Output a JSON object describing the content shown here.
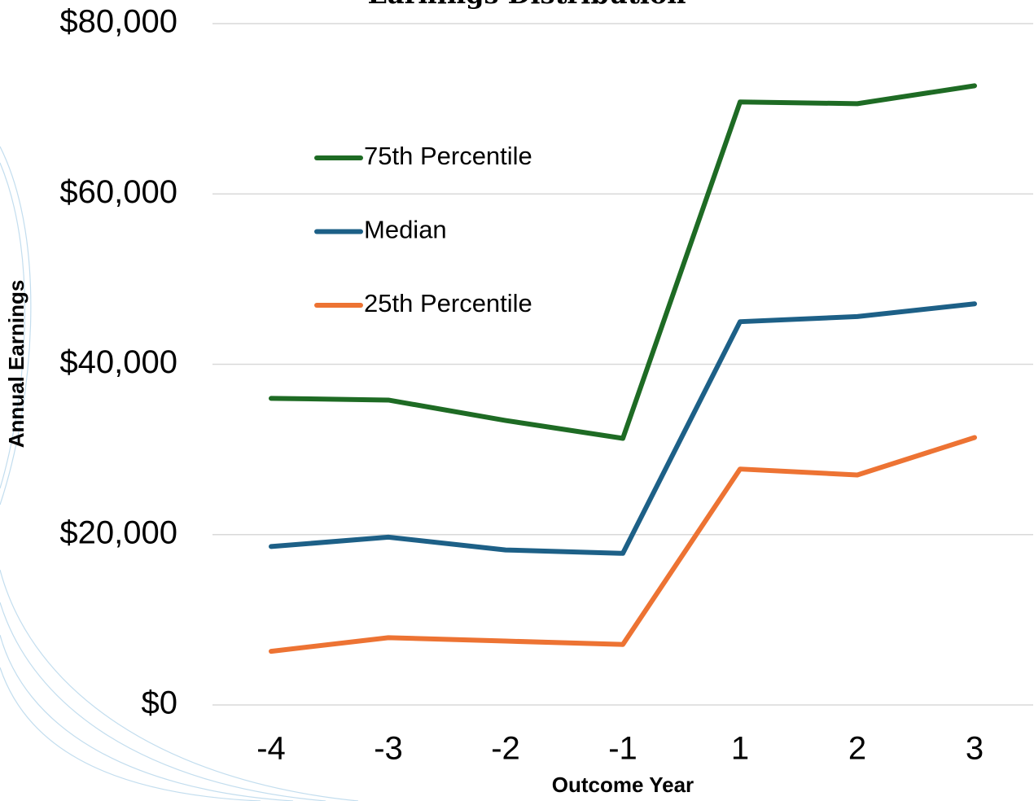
{
  "chart_data": {
    "type": "line",
    "title": "Earnings Distribution",
    "x_label": "Outcome Year",
    "y_label": "Annual Earnings",
    "categories": [
      "-4",
      "-3",
      "-2",
      "-1",
      "1",
      "2",
      "3"
    ],
    "series": [
      {
        "name": "75th Percentile",
        "color": "#1e6b24",
        "values": [
          36000,
          35800,
          33400,
          31300,
          70800,
          70600,
          72700
        ]
      },
      {
        "name": "Median",
        "color": "#1d6087",
        "values": [
          18600,
          19700,
          18200,
          17800,
          45000,
          45600,
          47100
        ]
      },
      {
        "name": "25th Percentile",
        "color": "#ed7333",
        "values": [
          6300,
          7900,
          7500,
          7100,
          27700,
          27000,
          31400
        ]
      }
    ],
    "ylim": [
      0,
      80000
    ],
    "yticks": [
      {
        "value": 0,
        "label": "$0"
      },
      {
        "value": 20000,
        "label": "$20,000"
      },
      {
        "value": 40000,
        "label": "$40,000"
      },
      {
        "value": 60000,
        "label": "$60,000"
      },
      {
        "value": 80000,
        "label": "$80,000"
      }
    ],
    "grid": true,
    "legend": "upper-left"
  }
}
